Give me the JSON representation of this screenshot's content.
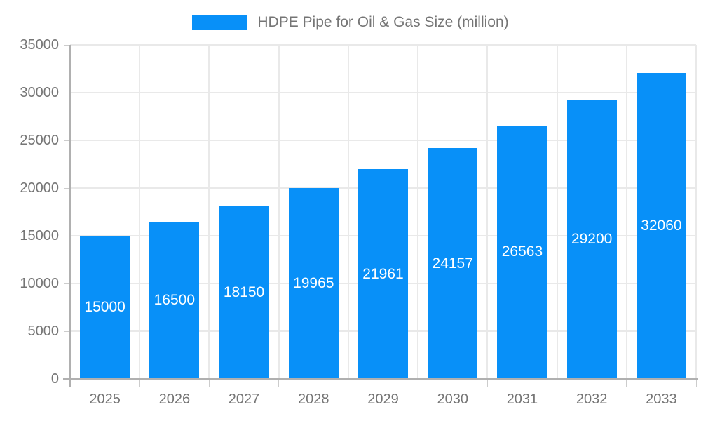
{
  "chart_data": {
    "type": "bar",
    "title": "HDPE Pipe for Oil & Gas Size (million)",
    "categories": [
      "2025",
      "2026",
      "2027",
      "2028",
      "2029",
      "2030",
      "2031",
      "2032",
      "2033"
    ],
    "series": [
      {
        "name": "HDPE Pipe for Oil & Gas Size (million)",
        "values": [
          15000,
          16500,
          18150,
          19965,
          21961,
          24157,
          26563,
          29200,
          32060
        ]
      }
    ],
    "bar_value_labels": [
      "15000",
      "16500",
      "18150",
      "19965",
      "21961",
      "24157",
      "26563",
      "29200",
      "32060"
    ],
    "xlabel": "",
    "ylabel": "",
    "ylim": [
      0,
      35000
    ],
    "yticks": [
      0,
      5000,
      10000,
      15000,
      20000,
      25000,
      30000,
      35000
    ],
    "grid": true,
    "legend_position": "top",
    "colors": {
      "bar": "#0890f8",
      "bar_label": "#ffffff",
      "axis_text": "#757575",
      "grid_line": "#e9e9e9",
      "axis_line": "#b0b0b0",
      "tick": "#cccccc",
      "background": "#ffffff"
    }
  }
}
